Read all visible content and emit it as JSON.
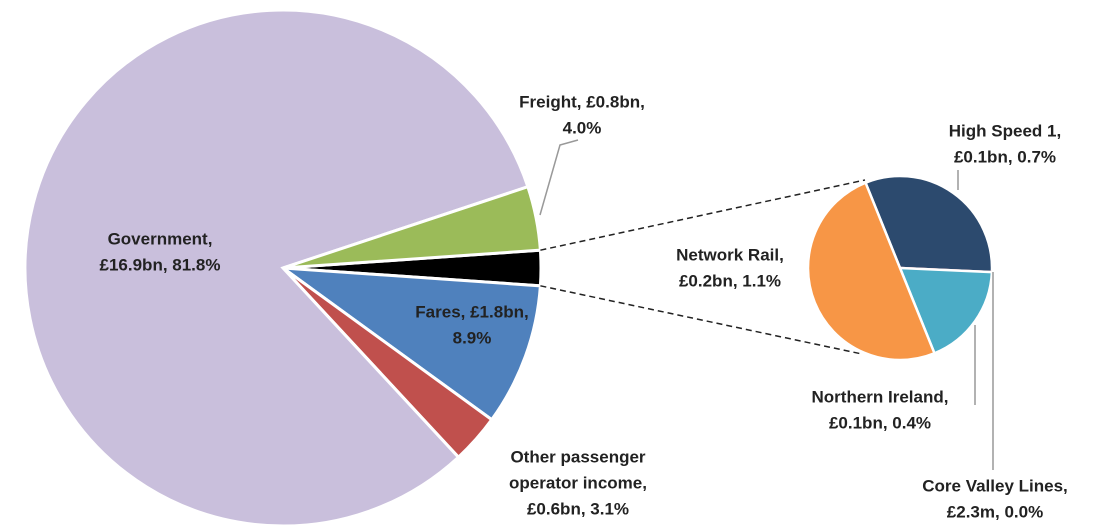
{
  "chart_data": {
    "type": "pie",
    "series": [
      {
        "values": [
          8.9,
          3.1,
          81.8,
          4.0
        ],
        "colors": [
          "#4f81bd",
          "#c0504d",
          "#c9bfdc",
          "#9bbb59"
        ],
        "value_labels": [
          [
            "Fares, £1.8bn,",
            "8.9%"
          ],
          [
            "Other passenger",
            "operator income,",
            "£0.6bn, 3.1%"
          ],
          [
            "Government,",
            "£16.9bn, 81.8%"
          ],
          [
            "Freight, £0.8bn,",
            "4.0%"
          ]
        ]
      },
      {
        "values": [
          0.7,
          0.0,
          0.4,
          1.1
        ],
        "colors": [
          "#2c4a6e",
          "#e06666",
          "#4bacc6",
          "#f79646"
        ],
        "group_color": "#000000",
        "value_labels": [
          [
            "High Speed 1,",
            "£0.1bn, 0.7%"
          ],
          [
            "Core Valley Lines,",
            "£2.3m, 0.0%"
          ],
          [
            "Northern Ireland,",
            "£0.1bn, 0.4%"
          ],
          [
            "Network Rail,",
            "£0.2bn, 1.1%"
          ]
        ]
      }
    ]
  }
}
